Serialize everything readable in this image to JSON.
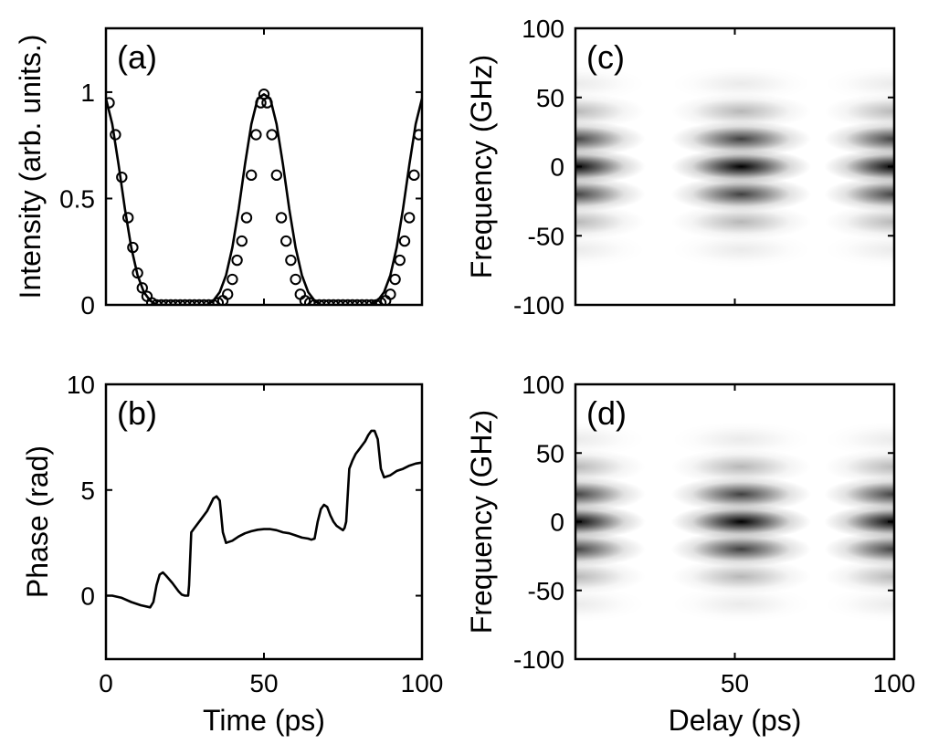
{
  "chart_data": [
    {
      "type": "line",
      "panel_label": "(a)",
      "xlabel": "",
      "ylabel": "Intensity (arb. units.)",
      "xlim": [
        0,
        100
      ],
      "ylim": [
        0,
        1.3
      ],
      "xticks": [
        0,
        50,
        100
      ],
      "yticks": [
        0,
        0.5,
        1
      ],
      "ytick_labels": [
        "0",
        "0.5",
        "1"
      ],
      "show_xtick_labels": false,
      "grid": false,
      "series": [
        {
          "style": "line",
          "x": [
            0,
            2,
            4,
            6,
            8,
            10,
            12,
            14,
            16,
            18,
            20,
            22,
            24,
            26,
            28,
            30,
            32,
            34,
            36,
            38,
            40,
            42,
            44,
            46,
            48,
            50,
            52,
            54,
            56,
            58,
            60,
            62,
            64,
            66,
            68,
            70,
            72,
            74,
            76,
            78,
            80,
            82,
            84,
            86,
            88,
            90,
            92,
            94,
            96,
            98,
            100
          ],
          "y": [
            0.97,
            0.85,
            0.66,
            0.45,
            0.27,
            0.14,
            0.06,
            0.02,
            0.0,
            0.0,
            0.0,
            0.0,
            0.0,
            0.0,
            0.0,
            0.0,
            0.0,
            0.02,
            0.06,
            0.14,
            0.27,
            0.45,
            0.66,
            0.85,
            0.97,
            0.99,
            0.97,
            0.85,
            0.66,
            0.45,
            0.27,
            0.14,
            0.06,
            0.02,
            0.0,
            0.0,
            0.0,
            0.0,
            0.0,
            0.0,
            0.0,
            0.0,
            0.0,
            0.02,
            0.06,
            0.14,
            0.27,
            0.45,
            0.66,
            0.85,
            0.97
          ]
        },
        {
          "style": "markers",
          "x": [
            1,
            3,
            5,
            7,
            8.5,
            10,
            11.5,
            13,
            14.5,
            16,
            17.5,
            19,
            20.5,
            22,
            23.5,
            25,
            26.5,
            28,
            29.5,
            31,
            32.5,
            34,
            35.5,
            37,
            38.5,
            40,
            41.5,
            43,
            44.5,
            46,
            47.5,
            49,
            50,
            51,
            52.5,
            54,
            55.5,
            57,
            58.5,
            60,
            61.5,
            63,
            64.5,
            66,
            67.5,
            69,
            70.5,
            72,
            73.5,
            75,
            76.5,
            78,
            79.5,
            81,
            82.5,
            84,
            85.5,
            87,
            88.5,
            90,
            91.5,
            93,
            94.5,
            96,
            97.5,
            99
          ],
          "y": [
            0.95,
            0.8,
            0.6,
            0.41,
            0.27,
            0.15,
            0.08,
            0.04,
            0.01,
            0.0,
            0.0,
            0.0,
            0.0,
            0.0,
            0.0,
            0.0,
            0.0,
            0.0,
            0.0,
            0.0,
            0.0,
            0.0,
            0.01,
            0.02,
            0.05,
            0.12,
            0.21,
            0.3,
            0.41,
            0.61,
            0.8,
            0.95,
            0.99,
            0.95,
            0.8,
            0.61,
            0.41,
            0.3,
            0.21,
            0.12,
            0.05,
            0.02,
            0.01,
            0.0,
            0.0,
            0.0,
            0.0,
            0.0,
            0.0,
            0.0,
            0.0,
            0.0,
            0.0,
            0.0,
            0.0,
            0.0,
            0.0,
            0.01,
            0.02,
            0.05,
            0.12,
            0.21,
            0.3,
            0.41,
            0.61,
            0.8
          ]
        }
      ]
    },
    {
      "type": "line",
      "panel_label": "(b)",
      "xlabel": "Time (ps)",
      "ylabel": "Phase (rad)",
      "xlim": [
        0,
        100
      ],
      "ylim": [
        -3,
        10
      ],
      "xticks": [
        0,
        50,
        100
      ],
      "yticks": [
        0,
        5,
        10
      ],
      "ytick_labels": [
        "0",
        "5",
        "10"
      ],
      "xtick_labels": [
        "0",
        "50",
        "100"
      ],
      "grid": false,
      "series": [
        {
          "style": "line",
          "x": [
            0,
            2,
            5,
            8,
            11,
            14,
            15,
            16,
            17,
            18,
            19,
            21,
            23,
            24,
            25,
            26,
            26.3,
            27,
            28,
            30,
            32,
            33,
            34,
            35,
            36,
            37,
            38,
            40,
            42,
            44,
            46,
            48,
            50,
            52,
            54,
            56,
            58,
            60,
            62,
            64,
            65,
            66,
            67,
            68,
            69,
            70,
            71,
            72,
            73,
            74,
            75,
            75.5,
            76,
            77,
            78,
            79,
            80,
            82,
            83,
            84,
            85,
            86,
            87,
            88,
            90,
            92,
            94,
            96,
            98,
            100
          ],
          "y": [
            0.0,
            0.0,
            -0.1,
            -0.3,
            -0.45,
            -0.55,
            -0.3,
            0.5,
            1.0,
            1.1,
            0.95,
            0.6,
            0.2,
            0.05,
            0.0,
            0.0,
            0.5,
            3.0,
            3.2,
            3.6,
            4.0,
            4.3,
            4.6,
            4.7,
            4.5,
            3.0,
            2.5,
            2.6,
            2.8,
            2.95,
            3.05,
            3.12,
            3.15,
            3.15,
            3.1,
            3.0,
            2.95,
            2.85,
            2.75,
            2.7,
            2.65,
            2.7,
            3.5,
            4.1,
            4.3,
            4.2,
            3.8,
            3.5,
            3.3,
            3.2,
            3.1,
            3.2,
            3.5,
            6.0,
            6.4,
            6.7,
            6.9,
            7.3,
            7.6,
            7.8,
            7.8,
            7.4,
            6.0,
            5.6,
            5.7,
            5.9,
            6.0,
            6.15,
            6.25,
            6.3
          ]
        }
      ]
    },
    {
      "type": "heatmap",
      "panel_label": "(c)",
      "xlabel": "",
      "ylabel": "Frequency (GHz)",
      "xlim": [
        0,
        100
      ],
      "ylim": [
        -100,
        100
      ],
      "xticks": [
        50,
        100
      ],
      "yticks": [
        -100,
        -50,
        0,
        50,
        100
      ],
      "ytick_labels": [
        "-100",
        "-50",
        "0",
        "50",
        "100"
      ],
      "show_xtick_labels": false,
      "colormap": "gray inverted",
      "blob_delays_ps": [
        0,
        52,
        100
      ],
      "blob_frequencies_ghz": [
        -80,
        -60,
        -40,
        -20,
        0,
        20,
        40,
        60,
        80
      ],
      "blob_intensity": [
        0.0,
        0.08,
        0.28,
        0.75,
        1.0,
        0.75,
        0.28,
        0.08,
        0.0
      ]
    },
    {
      "type": "heatmap",
      "panel_label": "(d)",
      "xlabel": "Delay (ps)",
      "ylabel": "Frequency (GHz)",
      "xlim": [
        0,
        100
      ],
      "ylim": [
        -100,
        100
      ],
      "xticks": [
        50,
        100
      ],
      "yticks": [
        -100,
        -50,
        0,
        50,
        100
      ],
      "ytick_labels": [
        "-100",
        "-50",
        "0",
        "50",
        "100"
      ],
      "xtick_labels": [
        "50",
        "100"
      ],
      "colormap": "gray inverted",
      "blob_delays_ps": [
        0,
        52,
        100
      ],
      "blob_frequencies_ghz": [
        -80,
        -60,
        -40,
        -20,
        0,
        20,
        40,
        60,
        80
      ],
      "blob_intensity": [
        0.0,
        0.08,
        0.28,
        0.75,
        1.0,
        0.75,
        0.28,
        0.08,
        0.0
      ]
    }
  ]
}
